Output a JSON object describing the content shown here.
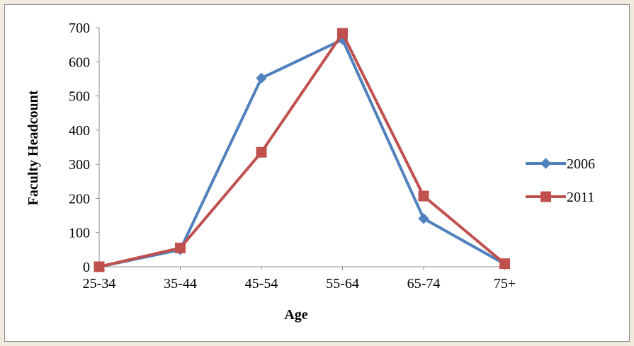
{
  "chart_data": {
    "type": "line",
    "categories": [
      "25-34",
      "35-44",
      "45-54",
      "55-64",
      "65-74",
      "75+"
    ],
    "series": [
      {
        "name": "2006",
        "values": [
          0,
          50,
          552,
          665,
          141,
          8
        ],
        "color": "#4f81bd",
        "marker": "diamond"
      },
      {
        "name": "2011",
        "values": [
          0,
          55,
          335,
          683,
          207,
          9
        ],
        "color": "#c0504d",
        "marker": "square"
      }
    ],
    "title": "",
    "xlabel": "Age",
    "ylabel": "Faculty Headcount",
    "ylim": [
      0,
      700
    ],
    "yticks": [
      0,
      100,
      200,
      300,
      400,
      500,
      600,
      700
    ],
    "grid": false,
    "legend_position": "right"
  }
}
